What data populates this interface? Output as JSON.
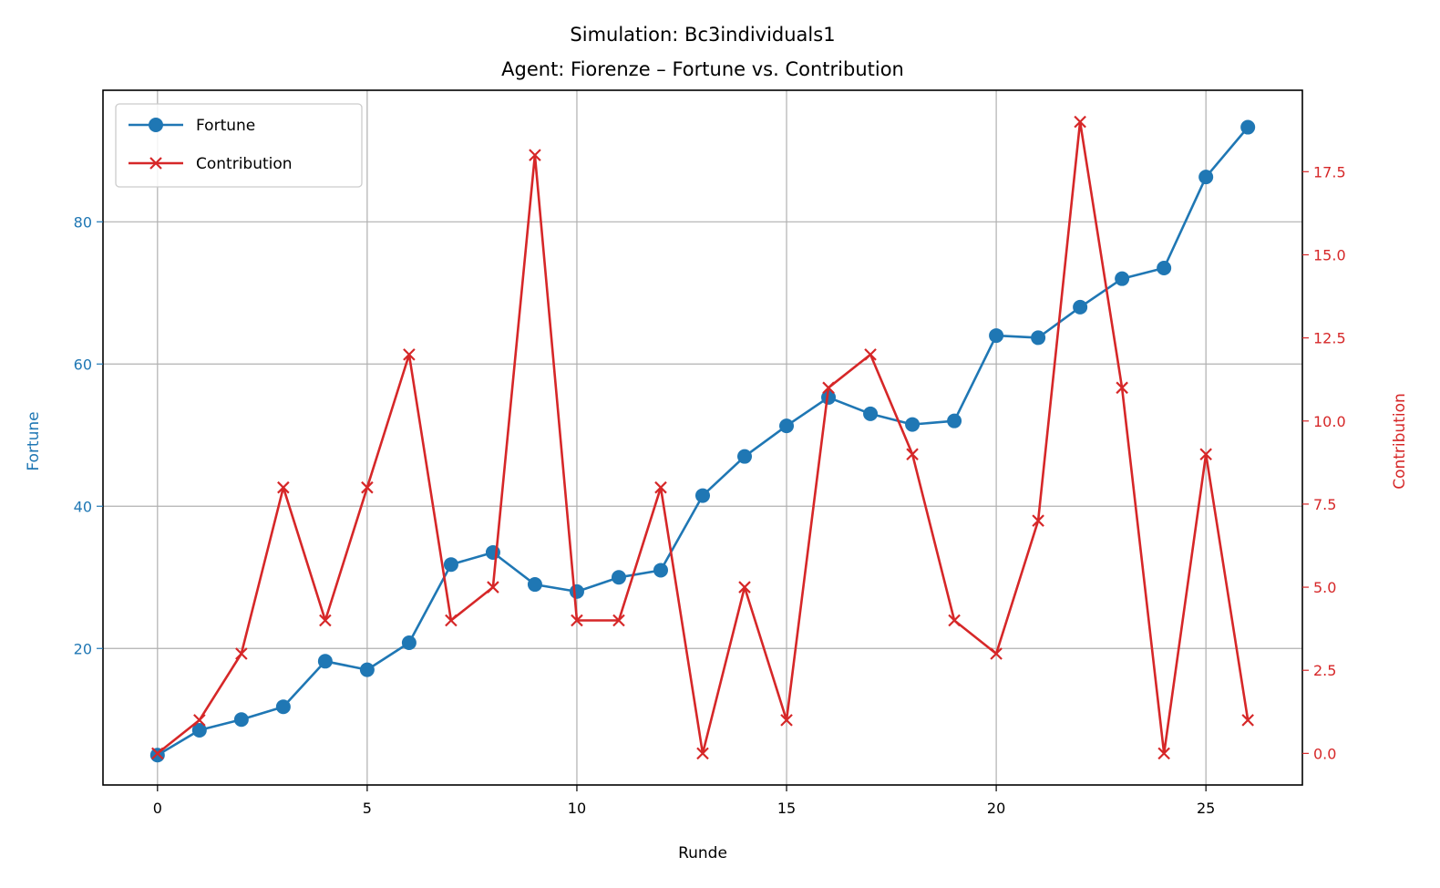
{
  "chart_data": {
    "type": "line",
    "title": "Simulation: Bc3individuals1",
    "subtitle": "Agent: Fiorenze – Fortune vs. Contribution",
    "xlabel": "Runde",
    "ylabel_left": "Fortune",
    "ylabel_right": "Contribution",
    "x": [
      0,
      1,
      2,
      3,
      4,
      5,
      6,
      7,
      8,
      9,
      10,
      11,
      12,
      13,
      14,
      15,
      16,
      17,
      18,
      19,
      20,
      21,
      22,
      23,
      24,
      25,
      26
    ],
    "xlim": [
      -1.3,
      27.3
    ],
    "ylim_left": [
      0.8,
      98.5
    ],
    "ylim_right": [
      -0.95,
      19.95
    ],
    "x_ticks": [
      0,
      5,
      10,
      15,
      20,
      25
    ],
    "y_left_ticks": [
      20,
      40,
      60,
      80
    ],
    "y_right_ticks": [
      "0.0",
      "2.5",
      "5.0",
      "7.5",
      "10.0",
      "12.5",
      "15.0",
      "17.5"
    ],
    "grid": true,
    "legend_position": "upper-left",
    "series": [
      {
        "name": "Fortune",
        "axis": "left",
        "color": "#1f77b4",
        "marker": "circle",
        "values": [
          5.0,
          8.5,
          10.0,
          11.8,
          18.2,
          17.0,
          20.8,
          31.8,
          33.5,
          29.0,
          28.0,
          30.0,
          31.0,
          41.5,
          47.0,
          51.3,
          55.3,
          53.0,
          51.5,
          52.0,
          64.0,
          63.7,
          68.0,
          72.0,
          73.5,
          86.3,
          93.3
        ]
      },
      {
        "name": "Contribution",
        "axis": "right",
        "color": "#d62728",
        "marker": "x",
        "values": [
          0,
          1,
          3,
          8,
          4,
          8,
          12,
          4,
          5,
          18,
          4,
          4,
          8,
          0,
          5,
          1,
          11,
          12,
          9,
          4,
          3,
          7,
          19,
          11,
          0,
          9,
          1
        ]
      }
    ]
  }
}
